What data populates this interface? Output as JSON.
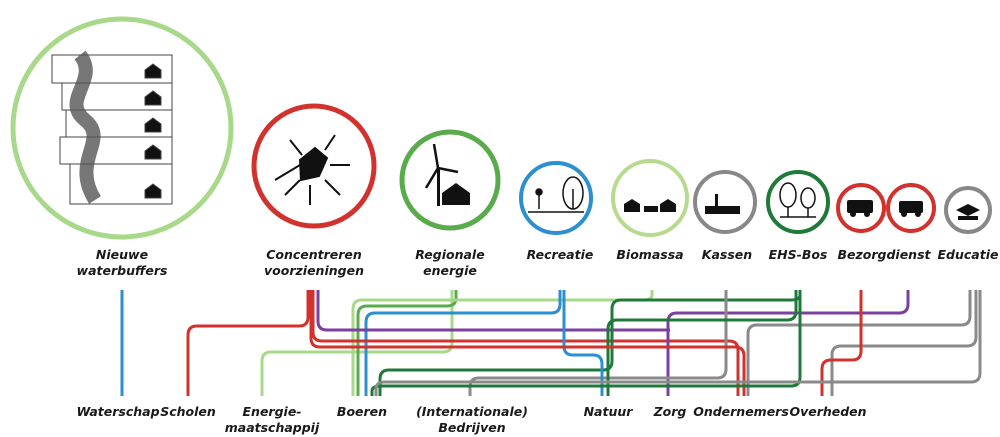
{
  "themes": [
    {
      "label": [
        "Nieuwe",
        "waterbuffers"
      ]
    },
    {
      "label": [
        "Concentreren",
        "voorzieningen"
      ]
    },
    {
      "label": [
        "Regionale",
        "energie"
      ]
    },
    {
      "label": [
        "Recreatie"
      ]
    },
    {
      "label": [
        "Biomassa"
      ]
    },
    {
      "label": [
        "Kassen"
      ]
    },
    {
      "label": [
        "EHS-Bos"
      ]
    },
    {
      "label": [
        "Bezorgdienst"
      ]
    },
    {
      "label": [
        "Educatie"
      ]
    }
  ],
  "stakeholders": [
    {
      "label": [
        "Waterschap"
      ]
    },
    {
      "label": [
        "Scholen"
      ]
    },
    {
      "label": [
        "Energie-",
        "maatschappij"
      ]
    },
    {
      "label": [
        "Boeren"
      ]
    },
    {
      "label": [
        "(Internationale)",
        "Bedrijven"
      ]
    },
    {
      "label": [
        "Natuur"
      ]
    },
    {
      "label": [
        "Zorg"
      ]
    },
    {
      "label": [
        "Ondernemers"
      ]
    },
    {
      "label": [
        "Overheden"
      ]
    }
  ]
}
